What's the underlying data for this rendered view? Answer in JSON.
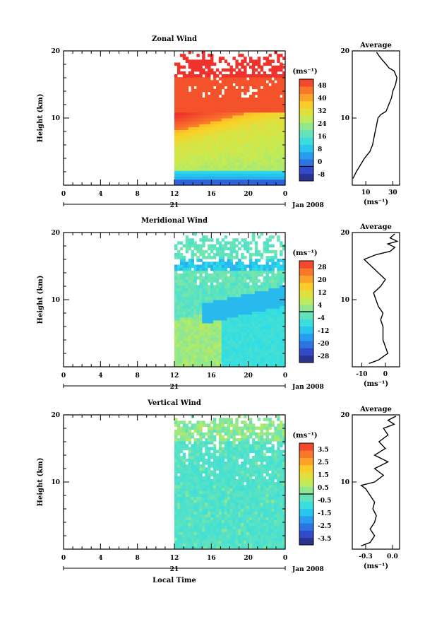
{
  "chart_data": [
    {
      "type": "heatmap",
      "title": "Zonal Wind",
      "ylabel": "Height (km)",
      "unit_label": "(ms⁻¹)",
      "xlim": [
        0,
        24
      ],
      "ylim": [
        0,
        20
      ],
      "xticks": [
        "0",
        "4",
        "8",
        "12",
        "16",
        "20",
        "0"
      ],
      "yticks": [
        "10",
        "20"
      ],
      "data_start_hour": 12,
      "date_day": "21",
      "date_label": "Jan 2008",
      "colorbar": {
        "min": -8,
        "max": 48,
        "ticks": [
          "-8",
          "0",
          "8",
          "16",
          "24",
          "32",
          "40",
          "48"
        ]
      },
      "profile": {
        "title": "Average",
        "xticks": [
          "10",
          "30"
        ],
        "xlim": [
          0,
          35
        ],
        "xunit": "(ms⁻¹)",
        "points": [
          [
            0.5,
            1
          ],
          [
            3,
            2
          ],
          [
            6,
            3
          ],
          [
            9,
            4
          ],
          [
            13,
            5
          ],
          [
            15,
            6
          ],
          [
            16,
            7
          ],
          [
            17,
            8
          ],
          [
            18,
            9
          ],
          [
            19,
            10
          ],
          [
            21,
            10.5
          ],
          [
            25,
            11
          ],
          [
            27,
            12
          ],
          [
            29,
            13
          ],
          [
            30,
            14
          ],
          [
            32,
            15
          ],
          [
            33,
            16
          ],
          [
            31,
            17
          ],
          [
            27,
            17.5
          ],
          [
            25,
            18
          ],
          [
            22,
            18.7
          ],
          [
            20,
            19.2
          ],
          [
            18,
            19.8
          ]
        ]
      }
    },
    {
      "type": "heatmap",
      "title": "Meridional Wind",
      "ylabel": "Height (km)",
      "unit_label": "(ms⁻¹)",
      "xlim": [
        0,
        24
      ],
      "ylim": [
        0,
        20
      ],
      "xticks": [
        "0",
        "4",
        "8",
        "12",
        "16",
        "20",
        "0"
      ],
      "yticks": [
        "10",
        "20"
      ],
      "data_start_hour": 12,
      "date_day": "21",
      "date_label": "Jan 2008",
      "colorbar": {
        "min": -28,
        "max": 28,
        "ticks": [
          "-28",
          "-20",
          "-12",
          "-4",
          "4",
          "12",
          "20",
          "28"
        ]
      },
      "profile": {
        "title": "Average",
        "xticks": [
          "-10",
          "0"
        ],
        "xlim": [
          -14,
          6
        ],
        "xunit": "(ms⁻¹)",
        "points": [
          [
            -7,
            0.5
          ],
          [
            -3,
            1
          ],
          [
            1,
            2
          ],
          [
            0,
            3
          ],
          [
            -1,
            4
          ],
          [
            -1,
            6
          ],
          [
            -2,
            7
          ],
          [
            -1,
            8
          ],
          [
            -3,
            9
          ],
          [
            -4,
            10
          ],
          [
            -5,
            11
          ],
          [
            -2,
            12
          ],
          [
            0,
            13
          ],
          [
            -3,
            14
          ],
          [
            -6,
            15
          ],
          [
            -9,
            16
          ],
          [
            -4,
            16.7
          ],
          [
            2,
            17.2
          ],
          [
            4,
            17.8
          ],
          [
            1,
            18.3
          ],
          [
            5,
            18.7
          ],
          [
            2,
            19.2
          ],
          [
            4,
            19.8
          ]
        ]
      }
    },
    {
      "type": "heatmap",
      "title": "Vertical Wind",
      "ylabel": "Height (km)",
      "unit_label": "(ms⁻¹)",
      "xlim": [
        0,
        24
      ],
      "ylim": [
        0,
        20
      ],
      "xticks": [
        "0",
        "4",
        "8",
        "12",
        "16",
        "20",
        "0"
      ],
      "yticks": [
        "10",
        "20"
      ],
      "data_start_hour": 12,
      "date_day": "21",
      "date_label": "Jan 2008",
      "xlabel": "Local Time",
      "colorbar": {
        "min": -3.5,
        "max": 3.5,
        "ticks": [
          "-3.5",
          "-2.5",
          "-1.5",
          "-0.5",
          "0.5",
          "1.5",
          "2.5",
          "3.5"
        ]
      },
      "profile": {
        "title": "Average",
        "xticks": [
          "-0.3",
          "0.0"
        ],
        "xlim": [
          -0.45,
          0.08
        ],
        "xunit": "(ms⁻¹)",
        "points": [
          [
            -0.35,
            0.5
          ],
          [
            -0.25,
            1
          ],
          [
            -0.2,
            2
          ],
          [
            -0.25,
            3
          ],
          [
            -0.2,
            4
          ],
          [
            -0.18,
            5
          ],
          [
            -0.22,
            6
          ],
          [
            -0.2,
            7
          ],
          [
            -0.25,
            8
          ],
          [
            -0.3,
            9
          ],
          [
            -0.35,
            9.5
          ],
          [
            -0.2,
            10
          ],
          [
            -0.1,
            11
          ],
          [
            -0.2,
            12
          ],
          [
            -0.05,
            13
          ],
          [
            -0.2,
            14
          ],
          [
            -0.08,
            15
          ],
          [
            -0.15,
            16
          ],
          [
            -0.05,
            17
          ],
          [
            -0.1,
            18
          ],
          [
            0.02,
            18.6
          ],
          [
            -0.05,
            19.2
          ],
          [
            0.04,
            19.8
          ]
        ]
      }
    }
  ]
}
